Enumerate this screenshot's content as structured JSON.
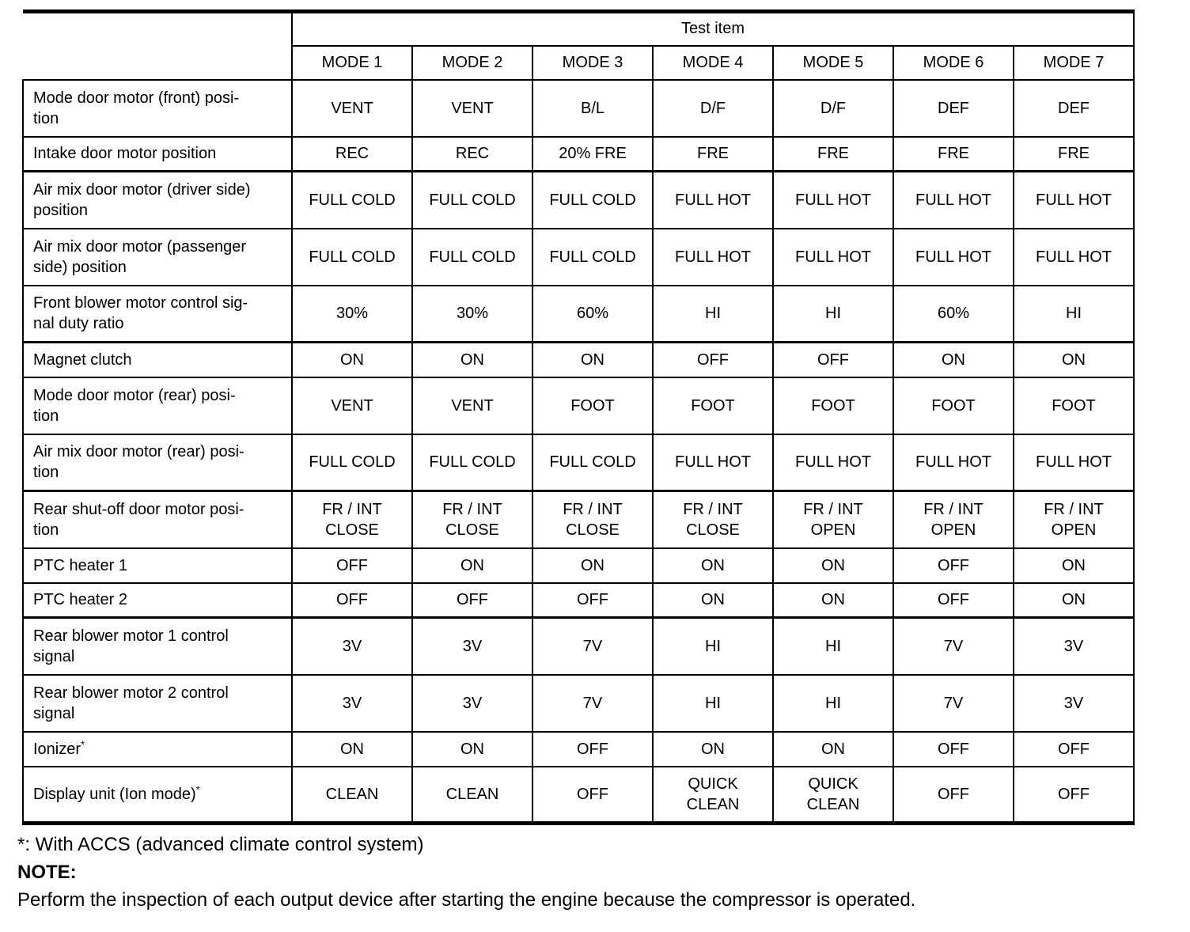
{
  "table": {
    "header": {
      "title": "Test item",
      "modes": [
        "MODE 1",
        "MODE 2",
        "MODE 3",
        "MODE 4",
        "MODE 5",
        "MODE 6",
        "MODE 7"
      ]
    },
    "rows": [
      {
        "label": "Mode door motor (front) posi-\ntion",
        "values": [
          "VENT",
          "VENT",
          "B/L",
          "D/F",
          "D/F",
          "DEF",
          "DEF"
        ]
      },
      {
        "label": "Intake door motor position",
        "values": [
          "REC",
          "REC",
          "20% FRE",
          "FRE",
          "FRE",
          "FRE",
          "FRE"
        ],
        "group_end": true
      },
      {
        "label": "Air mix door motor (driver side)\nposition",
        "values": [
          "FULL COLD",
          "FULL COLD",
          "FULL COLD",
          "FULL HOT",
          "FULL HOT",
          "FULL HOT",
          "FULL HOT"
        ]
      },
      {
        "label": "Air mix door motor (passenger\nside) position",
        "values": [
          "FULL COLD",
          "FULL COLD",
          "FULL COLD",
          "FULL HOT",
          "FULL HOT",
          "FULL HOT",
          "FULL HOT"
        ]
      },
      {
        "label": "Front blower motor control sig-\nnal duty ratio",
        "values": [
          "30%",
          "30%",
          "60%",
          "HI",
          "HI",
          "60%",
          "HI"
        ],
        "group_end": true
      },
      {
        "label": "Magnet clutch",
        "values": [
          "ON",
          "ON",
          "ON",
          "OFF",
          "OFF",
          "ON",
          "ON"
        ]
      },
      {
        "label": "Mode door motor (rear) posi-\ntion",
        "values": [
          "VENT",
          "VENT",
          "FOOT",
          "FOOT",
          "FOOT",
          "FOOT",
          "FOOT"
        ]
      },
      {
        "label": "Air mix door motor (rear) posi-\ntion",
        "values": [
          "FULL COLD",
          "FULL COLD",
          "FULL COLD",
          "FULL HOT",
          "FULL HOT",
          "FULL HOT",
          "FULL HOT"
        ],
        "group_end": true
      },
      {
        "label": "Rear shut-off door motor posi-\ntion",
        "values": [
          "FR / INT\nCLOSE",
          "FR / INT\nCLOSE",
          "FR / INT\nCLOSE",
          "FR / INT\nCLOSE",
          "FR / INT\nOPEN",
          "FR / INT\nOPEN",
          "FR / INT\nOPEN"
        ]
      },
      {
        "label": "PTC heater 1",
        "values": [
          "OFF",
          "ON",
          "ON",
          "ON",
          "ON",
          "OFF",
          "ON"
        ]
      },
      {
        "label": "PTC heater 2",
        "values": [
          "OFF",
          "OFF",
          "OFF",
          "ON",
          "ON",
          "OFF",
          "ON"
        ],
        "group_end": true
      },
      {
        "label": "Rear blower motor 1 control\nsignal",
        "values": [
          "3V",
          "3V",
          "7V",
          "HI",
          "HI",
          "7V",
          "3V"
        ]
      },
      {
        "label": "Rear blower motor 2 control\nsignal",
        "values": [
          "3V",
          "3V",
          "7V",
          "HI",
          "HI",
          "7V",
          "3V"
        ]
      },
      {
        "label": "Ionizer",
        "label_sup": "*",
        "values": [
          "ON",
          "ON",
          "OFF",
          "ON",
          "ON",
          "OFF",
          "OFF"
        ]
      },
      {
        "label": "Display unit (Ion mode)",
        "label_sup": "*",
        "values": [
          "CLEAN",
          "CLEAN",
          "OFF",
          "QUICK\nCLEAN",
          "QUICK\nCLEAN",
          "OFF",
          "OFF"
        ]
      }
    ]
  },
  "footer": {
    "footnote": "*: With ACCS (advanced climate control system)",
    "note_label": "NOTE:",
    "note_text": "Perform the inspection of each output device after starting the engine because the compressor is operated."
  },
  "colors": {
    "text": "#000000",
    "border": "#000000",
    "background": "#ffffff"
  }
}
